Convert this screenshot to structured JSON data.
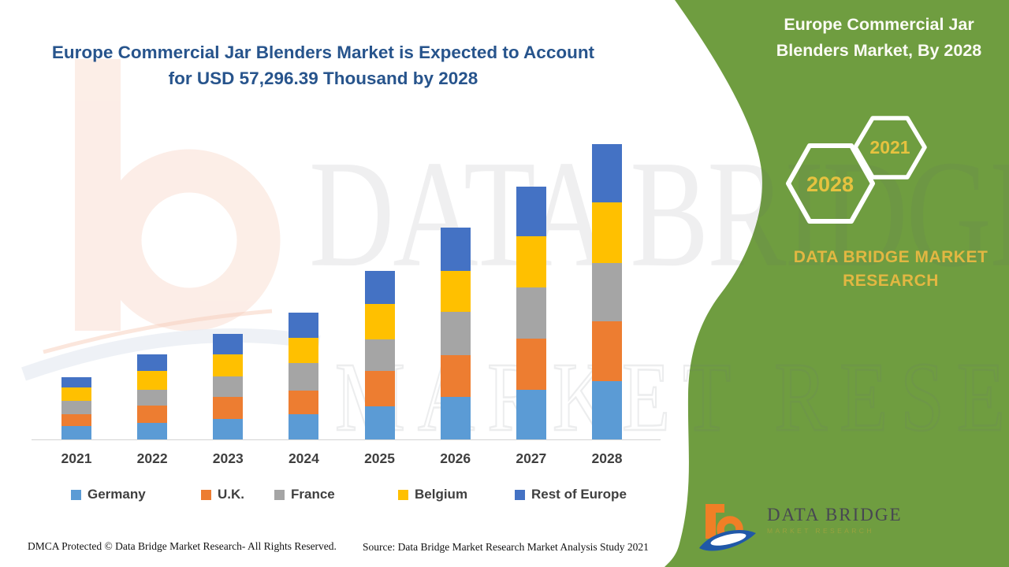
{
  "header": {
    "title_line1": "Europe Commercial Jar Blenders Market is Expected to Account",
    "title_line2": "for USD 57,296.39 Thousand by 2028"
  },
  "panel": {
    "title_line1": "Europe Commercial Jar",
    "title_line2": "Blenders Market, By 2028",
    "hex_back_label": "2021",
    "hex_front_label": "2028",
    "brand_line1": "DATA BRIDGE MARKET",
    "brand_line2": "RESEARCH",
    "background_color": "#6f9d40",
    "accent_gold": "#e2b742"
  },
  "watermark": {
    "text_big": "DATA BRIDGE",
    "text_outline": "MARKET RESEARCH"
  },
  "chart_data": {
    "type": "bar",
    "stacked": true,
    "title": "Europe Commercial Jar Blenders Market is Expected to Account for USD 57,296.39 Thousand by 2028",
    "unit": "USD Thousand",
    "categories": [
      "2021",
      "2022",
      "2023",
      "2024",
      "2025",
      "2026",
      "2027",
      "2028"
    ],
    "series": [
      {
        "name": "Germany",
        "color": "#5B9BD5",
        "values": [
          2550,
          3160,
          3970,
          4940,
          6460,
          8200,
          9670,
          11300
        ]
      },
      {
        "name": "U.K.",
        "color": "#ED7D31",
        "values": [
          2400,
          3410,
          4230,
          4480,
          6880,
          8140,
          9890,
          11610
        ]
      },
      {
        "name": "France",
        "color": "#A5A5A5",
        "values": [
          2490,
          3060,
          3970,
          5390,
          6110,
          8360,
          9980,
          11310
        ]
      },
      {
        "name": "Belgium",
        "color": "#FFC000",
        "values": [
          2600,
          3670,
          4320,
          4890,
          6770,
          7950,
          9890,
          11720
        ]
      },
      {
        "name": "Rest of Europe",
        "color": "#4472C4",
        "values": [
          2090,
          3210,
          3970,
          4890,
          6520,
          8400,
          9670,
          11356.39
        ]
      }
    ],
    "stated_value_2028_total": 57296.39,
    "xlabel": "",
    "ylabel": "",
    "ylim": [
      0,
      62650
    ],
    "gridlines": false,
    "y_axis_shown": false,
    "legend_position": "bottom"
  },
  "logo": {
    "name": "DATA BRIDGE",
    "tagline": "MARKET RESEARCH"
  },
  "footer": {
    "dmca": "DMCA Protected © Data Bridge Market Research- All Rights Reserved.",
    "source": "Source: Data Bridge Market Research Market Analysis Study 2021"
  }
}
